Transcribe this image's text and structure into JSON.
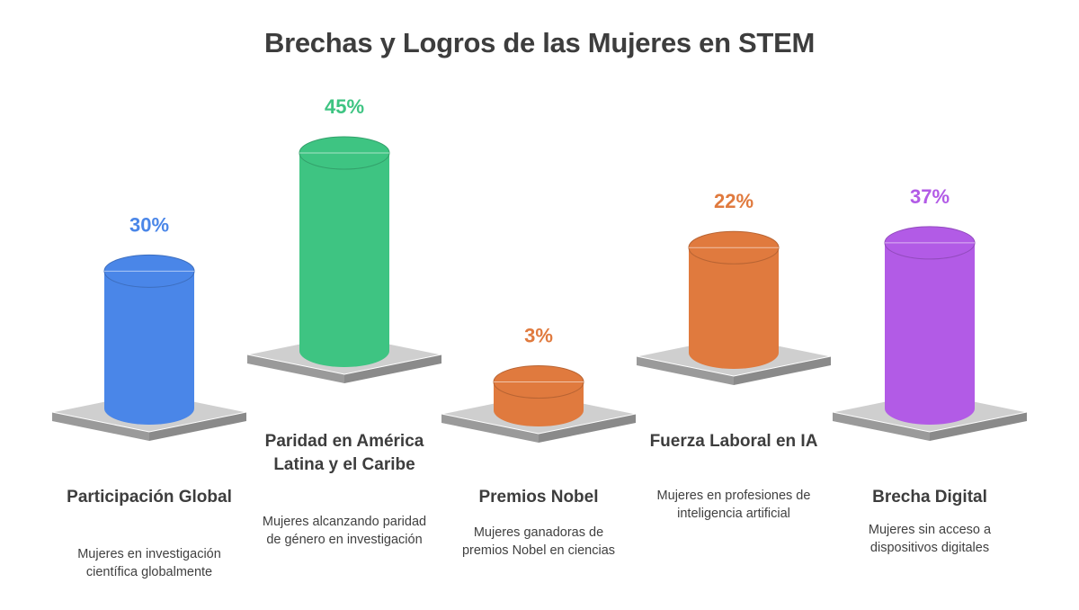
{
  "chart_data": {
    "type": "bar",
    "title": "Brechas y Logros de las Mujeres en STEM",
    "categories": [
      "Participación Global",
      "Paridad en América Latina y el Caribe",
      "Premios Nobel",
      "Fuerza Laboral en IA",
      "Brecha Digital"
    ],
    "values": [
      30,
      45,
      3,
      22,
      37
    ],
    "value_labels": [
      "30%",
      "45%",
      "3%",
      "22%",
      "37%"
    ],
    "descriptions": [
      "Mujeres en investigación científica globalmente",
      "Mujeres alcanzando paridad de género en investigación",
      "Mujeres ganadoras de premios Nobel en ciencias",
      "Mujeres en profesiones de inteligencia artificial",
      "Mujeres sin acceso a dispositivos digitales"
    ],
    "colors": [
      "#4a86e8",
      "#3ec482",
      "#e07a3e",
      "#e07a3e",
      "#b25be6"
    ],
    "xlabel": "",
    "ylabel": "",
    "ylim": [
      0,
      45
    ]
  }
}
